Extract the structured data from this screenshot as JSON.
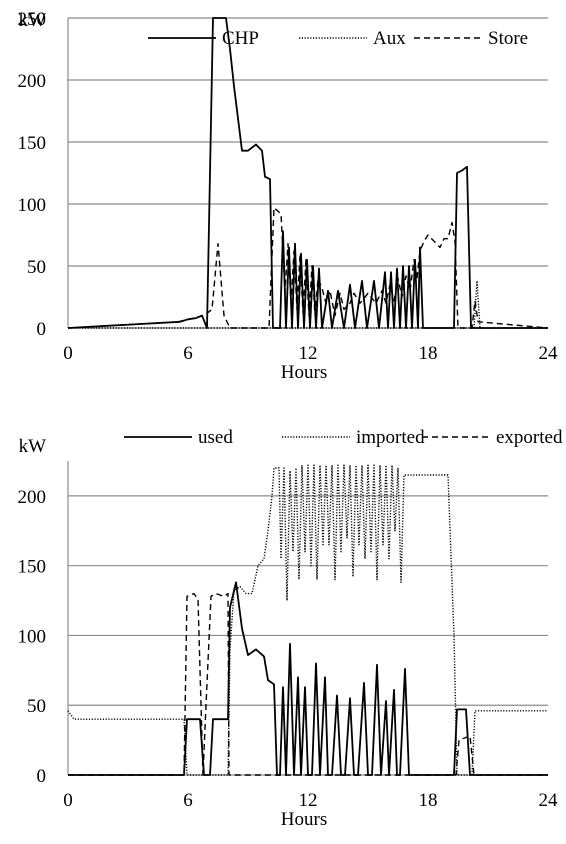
{
  "chart_data": [
    {
      "type": "line",
      "title": "",
      "ylabel": "kW",
      "xlabel": "Hours",
      "xlim": [
        0,
        24
      ],
      "ylim": [
        0,
        250
      ],
      "xticks": [
        "0",
        "6",
        "12",
        "18",
        "24"
      ],
      "yticks": [
        "0",
        "50",
        "100",
        "150",
        "200",
        "250"
      ],
      "grid": "horizontal",
      "legend": "top-right",
      "series": [
        {
          "name": "CHP",
          "style": "solid",
          "points": [
            [
              0,
              0
            ],
            [
              5.6,
              5
            ],
            [
              6.0,
              7
            ],
            [
              6.4,
              8
            ],
            [
              6.7,
              10
            ],
            [
              6.95,
              0
            ],
            [
              7.25,
              250
            ],
            [
              7.9,
              250
            ],
            [
              8.1,
              225
            ],
            [
              8.3,
              195
            ],
            [
              8.7,
              143
            ],
            [
              9.0,
              143
            ],
            [
              9.4,
              148
            ],
            [
              9.7,
              143
            ],
            [
              9.85,
              122
            ],
            [
              10.1,
              120
            ],
            [
              10.25,
              0
            ],
            [
              10.6,
              0
            ],
            [
              10.75,
              78
            ],
            [
              10.9,
              0
            ],
            [
              11.05,
              65
            ],
            [
              11.2,
              0
            ],
            [
              11.35,
              68
            ],
            [
              11.5,
              0
            ],
            [
              11.65,
              60
            ],
            [
              11.8,
              0
            ],
            [
              11.95,
              55
            ],
            [
              12.1,
              0
            ],
            [
              12.25,
              50
            ],
            [
              12.4,
              0
            ],
            [
              12.55,
              48
            ],
            [
              12.7,
              0
            ],
            [
              13.0,
              30
            ],
            [
              13.2,
              0
            ],
            [
              13.5,
              30
            ],
            [
              13.8,
              0
            ],
            [
              14.1,
              35
            ],
            [
              14.35,
              0
            ],
            [
              14.7,
              38
            ],
            [
              14.95,
              0
            ],
            [
              15.3,
              38
            ],
            [
              15.55,
              0
            ],
            [
              15.85,
              45
            ],
            [
              16.0,
              0
            ],
            [
              16.15,
              45
            ],
            [
              16.3,
              0
            ],
            [
              16.45,
              48
            ],
            [
              16.6,
              0
            ],
            [
              16.75,
              50
            ],
            [
              16.9,
              0
            ],
            [
              17.05,
              50
            ],
            [
              17.2,
              0
            ],
            [
              17.35,
              55
            ],
            [
              17.5,
              0
            ],
            [
              17.6,
              65
            ],
            [
              17.75,
              0
            ],
            [
              19.3,
              0
            ],
            [
              19.45,
              125
            ],
            [
              19.7,
              127
            ],
            [
              19.95,
              130
            ],
            [
              20.15,
              0
            ],
            [
              24,
              0
            ]
          ]
        },
        {
          "name": "Aux",
          "style": "dotted",
          "points": [
            [
              0,
              0
            ],
            [
              20.3,
              0
            ],
            [
              20.45,
              38
            ],
            [
              20.6,
              0
            ],
            [
              24,
              0
            ]
          ]
        },
        {
          "name": "Store",
          "style": "dashed",
          "points": [
            [
              0,
              0
            ],
            [
              5.5,
              5
            ],
            [
              6.8,
              10
            ],
            [
              7.2,
              15
            ],
            [
              7.5,
              68
            ],
            [
              7.8,
              10
            ],
            [
              8.1,
              0
            ],
            [
              10.05,
              0
            ],
            [
              10.3,
              97
            ],
            [
              10.65,
              92
            ],
            [
              10.85,
              30
            ],
            [
              11.0,
              68
            ],
            [
              11.15,
              20
            ],
            [
              11.3,
              62
            ],
            [
              11.45,
              15
            ],
            [
              11.6,
              58
            ],
            [
              11.75,
              12
            ],
            [
              11.9,
              55
            ],
            [
              12.05,
              10
            ],
            [
              12.2,
              50
            ],
            [
              12.35,
              10
            ],
            [
              12.5,
              40
            ],
            [
              12.7,
              32
            ],
            [
              12.9,
              20
            ],
            [
              13.1,
              30
            ],
            [
              13.35,
              10
            ],
            [
              13.6,
              28
            ],
            [
              13.8,
              15
            ],
            [
              14.1,
              20
            ],
            [
              14.3,
              28
            ],
            [
              14.6,
              20
            ],
            [
              15.0,
              28
            ],
            [
              15.4,
              20
            ],
            [
              15.7,
              30
            ],
            [
              15.9,
              20
            ],
            [
              16.1,
              35
            ],
            [
              16.3,
              22
            ],
            [
              16.5,
              40
            ],
            [
              16.7,
              25
            ],
            [
              16.9,
              42
            ],
            [
              17.1,
              30
            ],
            [
              17.3,
              55
            ],
            [
              17.45,
              40
            ],
            [
              17.6,
              62
            ],
            [
              17.8,
              70
            ],
            [
              18.0,
              75
            ],
            [
              18.3,
              70
            ],
            [
              18.6,
              65
            ],
            [
              18.8,
              72
            ],
            [
              19.0,
              72
            ],
            [
              19.2,
              85
            ],
            [
              19.35,
              70
            ],
            [
              19.5,
              0
            ],
            [
              20.2,
              0
            ],
            [
              20.35,
              22
            ],
            [
              20.5,
              5
            ],
            [
              24,
              0
            ]
          ]
        }
      ]
    },
    {
      "type": "line",
      "title": "",
      "ylabel": "kW",
      "xlabel": "Hours",
      "xlim": [
        0,
        24
      ],
      "ylim": [
        0,
        225
      ],
      "xticks": [
        "0",
        "6",
        "12",
        "18",
        "24"
      ],
      "yticks": [
        "0",
        "50",
        "100",
        "150",
        "200"
      ],
      "grid": "horizontal",
      "legend": "top",
      "series": [
        {
          "name": "used",
          "style": "solid",
          "points": [
            [
              0,
              0
            ],
            [
              5.8,
              0
            ],
            [
              5.95,
              40
            ],
            [
              6.6,
              40
            ],
            [
              6.8,
              0
            ],
            [
              7.1,
              0
            ],
            [
              7.25,
              40
            ],
            [
              8.0,
              40
            ],
            [
              8.1,
              120
            ],
            [
              8.4,
              138
            ],
            [
              8.7,
              105
            ],
            [
              9.0,
              86
            ],
            [
              9.4,
              90
            ],
            [
              9.8,
              85
            ],
            [
              10.0,
              68
            ],
            [
              10.3,
              65
            ],
            [
              10.45,
              0
            ],
            [
              10.6,
              0
            ],
            [
              10.75,
              63
            ],
            [
              10.9,
              0
            ],
            [
              11.1,
              94
            ],
            [
              11.3,
              0
            ],
            [
              11.5,
              70
            ],
            [
              11.65,
              0
            ],
            [
              11.85,
              63
            ],
            [
              12.0,
              0
            ],
            [
              12.2,
              0
            ],
            [
              12.4,
              80
            ],
            [
              12.6,
              0
            ],
            [
              12.85,
              70
            ],
            [
              13.0,
              0
            ],
            [
              13.2,
              0
            ],
            [
              13.45,
              57
            ],
            [
              13.65,
              0
            ],
            [
              13.85,
              0
            ],
            [
              14.1,
              55
            ],
            [
              14.3,
              0
            ],
            [
              14.5,
              0
            ],
            [
              14.8,
              66
            ],
            [
              15.0,
              0
            ],
            [
              15.2,
              0
            ],
            [
              15.45,
              79
            ],
            [
              15.65,
              0
            ],
            [
              15.9,
              53
            ],
            [
              16.05,
              0
            ],
            [
              16.3,
              61
            ],
            [
              16.45,
              0
            ],
            [
              16.6,
              0
            ],
            [
              16.85,
              76
            ],
            [
              17.05,
              0
            ],
            [
              19.3,
              0
            ],
            [
              19.45,
              47
            ],
            [
              19.9,
              47
            ],
            [
              20.1,
              0
            ],
            [
              24,
              0
            ]
          ]
        },
        {
          "name": "imported",
          "style": "dotted",
          "points": [
            [
              0,
              46
            ],
            [
              0.3,
              40
            ],
            [
              5.8,
              40
            ],
            [
              5.95,
              0
            ],
            [
              8.0,
              0
            ],
            [
              8.1,
              90
            ],
            [
              8.3,
              132
            ],
            [
              8.6,
              135
            ],
            [
              8.9,
              130
            ],
            [
              9.2,
              130
            ],
            [
              9.5,
              150
            ],
            [
              9.8,
              155
            ],
            [
              10.0,
              175
            ],
            [
              10.2,
              200
            ],
            [
              10.3,
              220
            ],
            [
              10.55,
              220
            ],
            [
              10.65,
              155
            ],
            [
              10.8,
              220
            ],
            [
              10.95,
              125
            ],
            [
              11.1,
              218
            ],
            [
              11.25,
              160
            ],
            [
              11.4,
              220
            ],
            [
              11.55,
              140
            ],
            [
              11.7,
              222
            ],
            [
              11.85,
              160
            ],
            [
              12.0,
              222
            ],
            [
              12.15,
              150
            ],
            [
              12.3,
              222
            ],
            [
              12.45,
              140
            ],
            [
              12.6,
              222
            ],
            [
              12.75,
              165
            ],
            [
              12.9,
              222
            ],
            [
              13.05,
              165
            ],
            [
              13.2,
              222
            ],
            [
              13.35,
              140
            ],
            [
              13.5,
              222
            ],
            [
              13.65,
              160
            ],
            [
              13.8,
              222
            ],
            [
              13.95,
              170
            ],
            [
              14.1,
              222
            ],
            [
              14.25,
              142
            ],
            [
              14.4,
              222
            ],
            [
              14.55,
              165
            ],
            [
              14.7,
              222
            ],
            [
              14.85,
              155
            ],
            [
              15.0,
              222
            ],
            [
              15.15,
              160
            ],
            [
              15.3,
              222
            ],
            [
              15.45,
              140
            ],
            [
              15.6,
              222
            ],
            [
              15.75,
              165
            ],
            [
              15.9,
              222
            ],
            [
              16.05,
              155
            ],
            [
              16.2,
              222
            ],
            [
              16.35,
              175
            ],
            [
              16.5,
              220
            ],
            [
              16.65,
              138
            ],
            [
              16.8,
              215
            ],
            [
              17.2,
              215
            ],
            [
              17.4,
              215
            ],
            [
              17.55,
              215
            ],
            [
              19.0,
              215
            ],
            [
              19.3,
              100
            ],
            [
              19.45,
              0
            ],
            [
              20.2,
              0
            ],
            [
              20.35,
              46
            ],
            [
              24,
              46
            ]
          ]
        },
        {
          "name": "exported",
          "style": "dashed",
          "points": [
            [
              0,
              0
            ],
            [
              5.8,
              0
            ],
            [
              5.95,
              128
            ],
            [
              6.3,
              130
            ],
            [
              6.5,
              126
            ],
            [
              6.75,
              0
            ],
            [
              6.9,
              50
            ],
            [
              7.15,
              128
            ],
            [
              7.4,
              130
            ],
            [
              7.8,
              128
            ],
            [
              8.0,
              130
            ],
            [
              8.05,
              0
            ],
            [
              19.4,
              0
            ],
            [
              19.55,
              25
            ],
            [
              20.1,
              28
            ],
            [
              20.3,
              0
            ],
            [
              24,
              0
            ]
          ]
        }
      ]
    }
  ],
  "legend_labels": {
    "top": [
      "CHP",
      "Aux",
      "Store"
    ],
    "bottom": [
      "used",
      "imported",
      "exported"
    ]
  }
}
